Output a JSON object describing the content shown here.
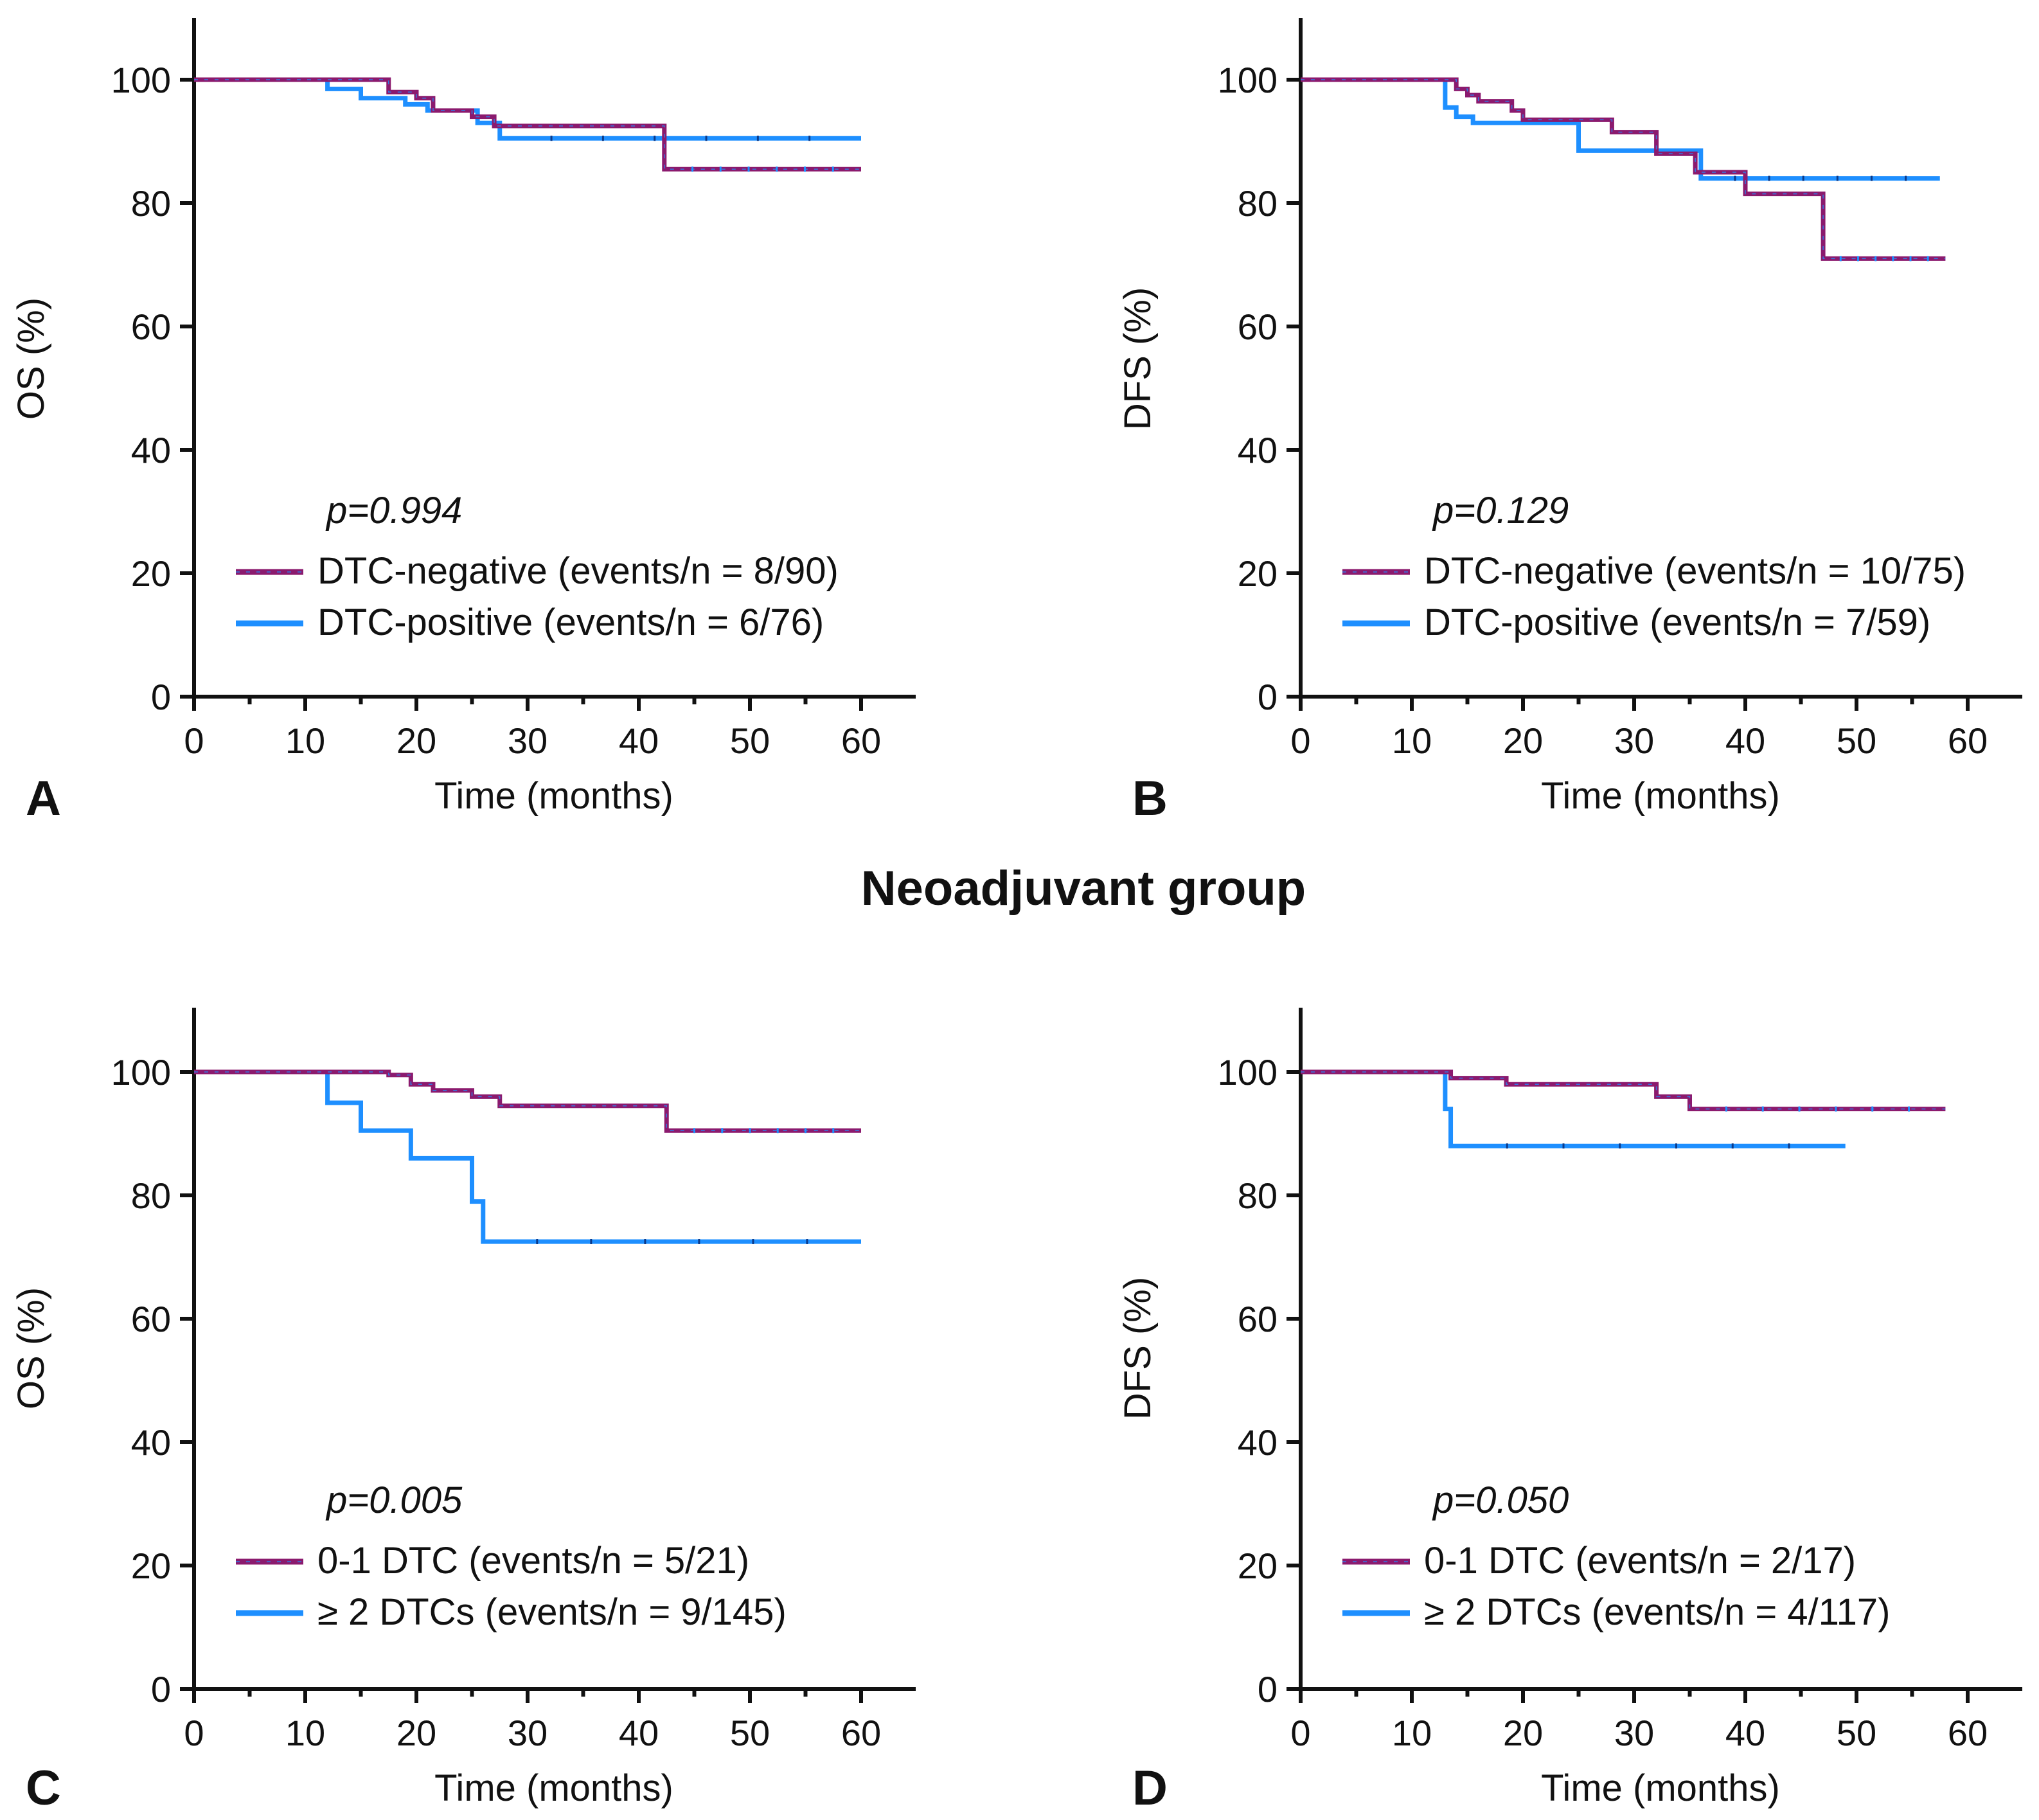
{
  "group_title": "Neoadjuvant group",
  "colors": {
    "series_a": "#8b1a6e",
    "series_b": "#1e8fff"
  },
  "chart_data": [
    {
      "panel": "A",
      "type": "line",
      "xlabel": "Time (months)",
      "ylabel": "OS (%)",
      "xlim": [
        0,
        65
      ],
      "ylim": [
        0,
        110
      ],
      "xticks": [
        0,
        10,
        20,
        30,
        40,
        50,
        60
      ],
      "yticks": [
        0,
        20,
        40,
        60,
        80,
        100
      ],
      "p_value": "p=0.994",
      "series": [
        {
          "name": "DTC-negative (events/n = 8/90)",
          "color": "#8b1a6e",
          "x": [
            0,
            12,
            17.5,
            20,
            21.5,
            25,
            27,
            42,
            42.3,
            60
          ],
          "y": [
            100,
            100,
            98,
            97,
            95,
            94,
            92.5,
            92.5,
            85.5,
            85.5
          ]
        },
        {
          "name": "DTC-positive (events/n = 6/76)",
          "color": "#1e8fff",
          "x": [
            0,
            12,
            15,
            19,
            21,
            25.5,
            27.5,
            60
          ],
          "y": [
            100,
            98.5,
            97,
            96,
            95,
            93,
            90.5,
            90.5
          ]
        }
      ]
    },
    {
      "panel": "B",
      "type": "line",
      "xlabel": "Time (months)",
      "ylabel": "DFS (%)",
      "xlim": [
        0,
        65
      ],
      "ylim": [
        0,
        110
      ],
      "xticks": [
        0,
        10,
        20,
        30,
        40,
        50,
        60
      ],
      "yticks": [
        0,
        20,
        40,
        60,
        80,
        100
      ],
      "p_value": "p=0.129",
      "series": [
        {
          "name": "DTC-negative (events/n = 10/75)",
          "color": "#8b1a6e",
          "x": [
            0,
            14,
            15,
            16,
            19,
            20,
            28,
            32,
            35.5,
            40,
            47,
            58
          ],
          "y": [
            100,
            98.5,
            97.5,
            96.5,
            95,
            93.5,
            91.5,
            88,
            85,
            81.5,
            71,
            71
          ]
        },
        {
          "name": "DTC-positive (events/n = 7/59)",
          "color": "#1e8fff",
          "x": [
            0,
            13,
            14,
            15.5,
            25,
            36,
            57.5
          ],
          "y": [
            100,
            95.5,
            94,
            93,
            88.5,
            84,
            84
          ]
        }
      ]
    },
    {
      "panel": "C",
      "type": "line",
      "xlabel": "Time (months)",
      "ylabel": "OS (%)",
      "xlim": [
        0,
        65
      ],
      "ylim": [
        0,
        110
      ],
      "xticks": [
        0,
        10,
        20,
        30,
        40,
        50,
        60
      ],
      "yticks": [
        0,
        20,
        40,
        60,
        80,
        100
      ],
      "p_value": "p=0.005",
      "series": [
        {
          "name": "0-1 DTC (events/n = 5/21)",
          "color": "#8b1a6e",
          "x": [
            0,
            12,
            17.5,
            19.5,
            21.5,
            25,
            27.5,
            42.5,
            60
          ],
          "y": [
            100,
            100,
            99.5,
            98,
            97,
            96,
            94.5,
            90.5,
            90.5
          ]
        },
        {
          "name": "≥ 2 DTCs (events/n = 9/145)",
          "color": "#1e8fff",
          "x": [
            0,
            12,
            15,
            19.5,
            25,
            26,
            60
          ],
          "y": [
            100,
            95,
            90.5,
            86,
            79,
            72.5,
            72.5
          ]
        }
      ]
    },
    {
      "panel": "D",
      "type": "line",
      "xlabel": "Time (months)",
      "ylabel": "DFS (%)",
      "xlim": [
        0,
        65
      ],
      "ylim": [
        0,
        110
      ],
      "xticks": [
        0,
        10,
        20,
        30,
        40,
        50,
        60
      ],
      "yticks": [
        0,
        20,
        40,
        60,
        80,
        100
      ],
      "p_value": "p=0.050",
      "series": [
        {
          "name": "0-1 DTC (events/n = 2/17)",
          "color": "#8b1a6e",
          "x": [
            0,
            13.5,
            18.5,
            32,
            35,
            58
          ],
          "y": [
            100,
            99,
            98,
            96,
            94,
            94
          ]
        },
        {
          "name": "≥ 2 DTCs (events/n = 4/117)",
          "color": "#1e8fff",
          "x": [
            0,
            13,
            13.5,
            49
          ],
          "y": [
            100,
            94,
            88,
            88
          ]
        }
      ]
    }
  ]
}
